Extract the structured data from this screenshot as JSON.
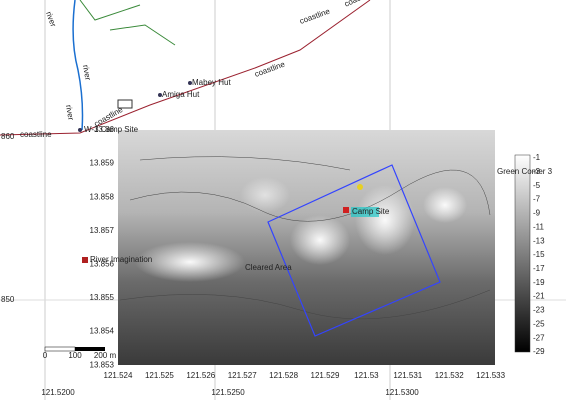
{
  "map": {
    "labels": [
      "river",
      "river",
      "river",
      "coastline",
      "coastline",
      "coastline",
      "coastline",
      "coastline",
      "Mabey Hut",
      "Amiga Hut",
      "W-3 Camp Site",
      "River Imagination",
      "Green Comer 3",
      "Cleared Area",
      "Camp Site"
    ],
    "outer_x_labels": [
      "121.5200",
      "121.5250",
      "121.5300"
    ],
    "outer_y_labels": [
      "860",
      "850"
    ],
    "plot_x_ticks": [
      "121.524",
      "121.525",
      "121.526",
      "121.527",
      "121.528",
      "121.529",
      "121.53",
      "121.531",
      "121.532",
      "121.533"
    ],
    "plot_y_ticks": [
      "13.86",
      "13.859",
      "13.858",
      "13.857",
      "13.856",
      "13.855",
      "13.854",
      "13.853"
    ],
    "colorbar_ticks": [
      "-1",
      "-3",
      "-5",
      "-7",
      "-9",
      "-11",
      "-13",
      "-15",
      "-17",
      "-19",
      "-21",
      "-23",
      "-25",
      "-27",
      "-29"
    ],
    "scale_bar": [
      "0",
      "100",
      "200 m"
    ]
  }
}
